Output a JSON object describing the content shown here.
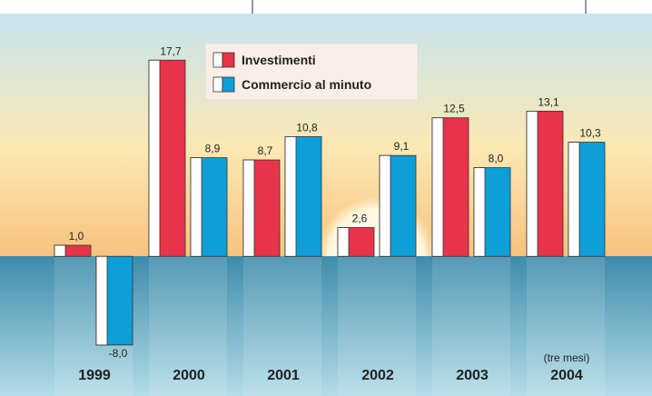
{
  "chart_data": {
    "type": "bar",
    "categories": [
      "1999",
      "2000",
      "2001",
      "2002",
      "2003",
      "2004"
    ],
    "series": [
      {
        "name": "Investimenti",
        "color": "#e8334a",
        "values": [
          1.0,
          17.7,
          8.7,
          2.6,
          12.5,
          13.1
        ],
        "value_labels": [
          "1,0",
          "17,7",
          "8,7",
          "2,6",
          "12,5",
          "13,1"
        ]
      },
      {
        "name": "Commercio al minuto",
        "color": "#0e9ed8",
        "values": [
          -8.0,
          8.9,
          10.8,
          9.1,
          8.0,
          10.3
        ],
        "value_labels": [
          "-8,0",
          "8,9",
          "10,8",
          "9,1",
          "8,0",
          "10,3"
        ]
      }
    ],
    "annotations": [
      {
        "category": "2004",
        "text": "(tre mesi)"
      }
    ],
    "ylim": [
      -12.6,
      21.9
    ]
  }
}
